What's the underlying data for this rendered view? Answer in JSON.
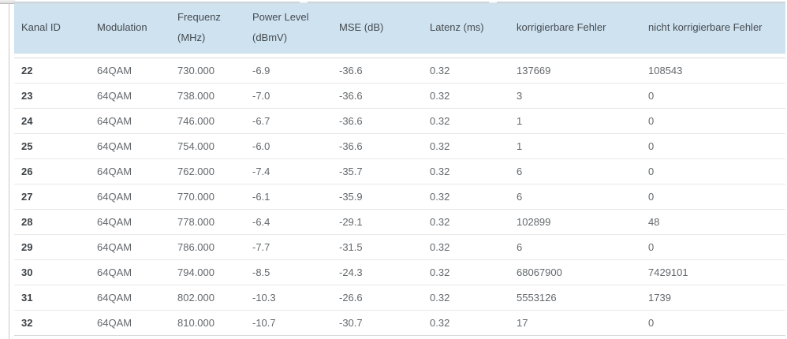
{
  "table": {
    "columns": [
      {
        "key": "kanal_id",
        "label": "Kanal ID"
      },
      {
        "key": "modulation",
        "label": "Modulation"
      },
      {
        "key": "frequenz",
        "label": "Frequenz (MHz)"
      },
      {
        "key": "power_level",
        "label": "Power Level (dBmV)"
      },
      {
        "key": "mse",
        "label": "MSE (dB)"
      },
      {
        "key": "latenz",
        "label": "Latenz (ms)"
      },
      {
        "key": "korrigierbare_fehler",
        "label": "korrigierbare Fehler"
      },
      {
        "key": "nicht_korrigierbare_fehler",
        "label": "nicht korrigierbare Fehler"
      }
    ],
    "rows": [
      [
        "22",
        "64QAM",
        "730.000",
        "-6.9",
        "-36.6",
        "0.32",
        "137669",
        "108543"
      ],
      [
        "23",
        "64QAM",
        "738.000",
        "-7.0",
        "-36.6",
        "0.32",
        "3",
        "0"
      ],
      [
        "24",
        "64QAM",
        "746.000",
        "-6.7",
        "-36.6",
        "0.32",
        "1",
        "0"
      ],
      [
        "25",
        "64QAM",
        "754.000",
        "-6.0",
        "-36.6",
        "0.32",
        "1",
        "0"
      ],
      [
        "26",
        "64QAM",
        "762.000",
        "-7.4",
        "-35.7",
        "0.32",
        "6",
        "0"
      ],
      [
        "27",
        "64QAM",
        "770.000",
        "-6.1",
        "-35.9",
        "0.32",
        "6",
        "0"
      ],
      [
        "28",
        "64QAM",
        "778.000",
        "-6.4",
        "-29.1",
        "0.32",
        "102899",
        "48"
      ],
      [
        "29",
        "64QAM",
        "786.000",
        "-7.7",
        "-31.5",
        "0.32",
        "6",
        "0"
      ],
      [
        "30",
        "64QAM",
        "794.000",
        "-8.5",
        "-24.3",
        "0.32",
        "68067900",
        "7429101"
      ],
      [
        "31",
        "64QAM",
        "802.000",
        "-10.3",
        "-26.6",
        "0.32",
        "5553126",
        "1739"
      ],
      [
        "32",
        "64QAM",
        "810.000",
        "-10.7",
        "-30.7",
        "0.32",
        "17",
        "0"
      ]
    ]
  },
  "colors": {
    "header_bg": "#cfe2f0",
    "header_text": "#454b50",
    "row_text": "#63686c",
    "row_border": "#e8e8e8",
    "panel_border": "#c9c9c9"
  }
}
